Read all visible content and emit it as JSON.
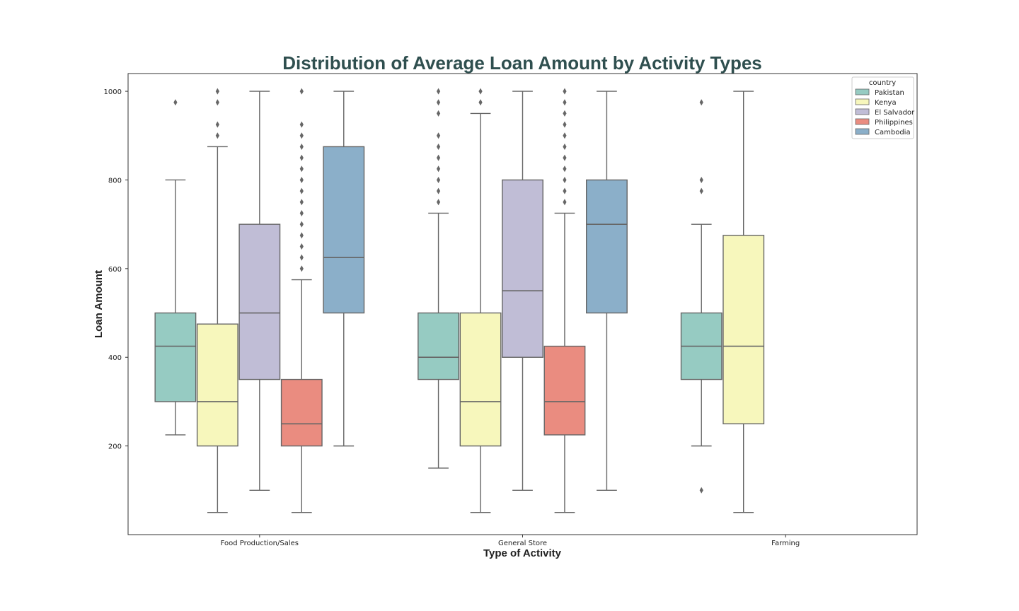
{
  "chart_data": {
    "type": "box",
    "title": "Distribution of Average Loan Amount by Activity Types",
    "xlabel": "Type of Activity",
    "ylabel": "Loan Amount",
    "categories": [
      "Food Production/Sales",
      "General Store",
      "Farming"
    ],
    "ylim": [
      0,
      1040
    ],
    "yticks": [
      200,
      400,
      600,
      800,
      1000
    ],
    "grid": false,
    "legend": {
      "title": "country",
      "position": "top-right"
    },
    "series": [
      {
        "name": "Pakistan",
        "color": "#96cbc2",
        "boxes": [
          {
            "whisker_low": 225,
            "q1": 300,
            "median": 425,
            "q3": 500,
            "whisker_high": 800,
            "outliers": [
              975
            ]
          },
          {
            "whisker_low": 150,
            "q1": 350,
            "median": 400,
            "q3": 500,
            "whisker_high": 725,
            "outliers": [
              750,
              775,
              800,
              825,
              850,
              875,
              900,
              950,
              975,
              1000
            ]
          },
          {
            "whisker_low": 200,
            "q1": 350,
            "median": 425,
            "q3": 500,
            "whisker_high": 700,
            "outliers": [
              100,
              775,
              800,
              975
            ]
          }
        ]
      },
      {
        "name": "Kenya",
        "color": "#f7f7bc",
        "boxes": [
          {
            "whisker_low": 50,
            "q1": 200,
            "median": 300,
            "q3": 475,
            "whisker_high": 875,
            "outliers": [
              900,
              925,
              975,
              1000
            ]
          },
          {
            "whisker_low": 50,
            "q1": 200,
            "median": 300,
            "q3": 500,
            "whisker_high": 950,
            "outliers": [
              975,
              1000
            ]
          },
          {
            "whisker_low": 50,
            "q1": 250,
            "median": 425,
            "q3": 675,
            "whisker_high": 1000,
            "outliers": []
          }
        ]
      },
      {
        "name": "El Salvador",
        "color": "#c0bdd6",
        "boxes": [
          {
            "whisker_low": 100,
            "q1": 350,
            "median": 500,
            "q3": 700,
            "whisker_high": 1000,
            "outliers": []
          },
          {
            "whisker_low": 100,
            "q1": 400,
            "median": 550,
            "q3": 800,
            "whisker_high": 1000,
            "outliers": []
          },
          null
        ]
      },
      {
        "name": "Philippines",
        "color": "#ea8c80",
        "boxes": [
          {
            "whisker_low": 50,
            "q1": 200,
            "median": 250,
            "q3": 350,
            "whisker_high": 575,
            "outliers": [
              600,
              625,
              650,
              675,
              700,
              725,
              750,
              775,
              800,
              825,
              850,
              875,
              900,
              925,
              1000
            ]
          },
          {
            "whisker_low": 50,
            "q1": 225,
            "median": 300,
            "q3": 425,
            "whisker_high": 725,
            "outliers": [
              750,
              775,
              800,
              825,
              850,
              875,
              900,
              925,
              950,
              975,
              1000
            ]
          },
          null
        ]
      },
      {
        "name": "Cambodia",
        "color": "#8bafc9",
        "boxes": [
          {
            "whisker_low": 200,
            "q1": 500,
            "median": 625,
            "q3": 875,
            "whisker_high": 1000,
            "outliers": []
          },
          {
            "whisker_low": 100,
            "q1": 500,
            "median": 700,
            "q3": 800,
            "whisker_high": 1000,
            "outliers": []
          },
          null
        ]
      }
    ]
  }
}
